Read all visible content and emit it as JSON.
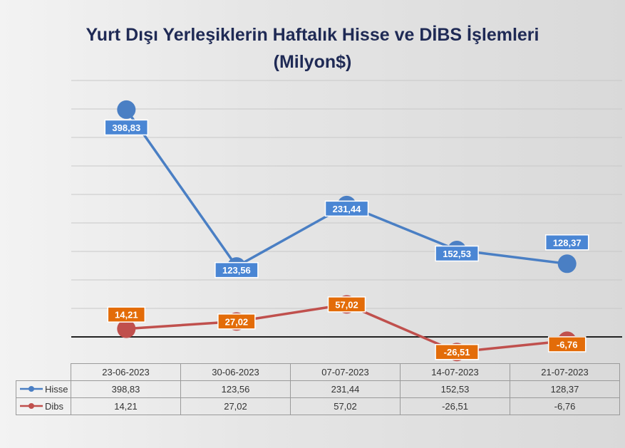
{
  "chart_data": {
    "type": "line",
    "title_line1": "Yurt Dışı Yerleşiklerin Haftalık Hisse ve DİBS İşlemleri",
    "title_line2": "(Milyon$)",
    "categories": [
      "23-06-2023",
      "30-06-2023",
      "07-07-2023",
      "14-07-2023",
      "21-07-2023"
    ],
    "series": [
      {
        "name": "Hisse",
        "values": [
          398.83,
          123.56,
          231.44,
          152.53,
          128.37
        ],
        "labels": [
          "398,83",
          "123,56",
          "231,44",
          "152,53",
          "128,37"
        ],
        "color": "#4a7fc4",
        "label_bg": "#4a86d4"
      },
      {
        "name": "Dibs",
        "values": [
          14.21,
          27.02,
          57.02,
          -26.51,
          -6.76
        ],
        "labels": [
          "14,21",
          "27,02",
          "57,02",
          "-26,51",
          "-6,76"
        ],
        "color": "#c0504d",
        "label_bg": "#e36c09"
      }
    ],
    "ylim": [
      -50,
      450
    ],
    "grid": true,
    "legend": "data-table"
  }
}
